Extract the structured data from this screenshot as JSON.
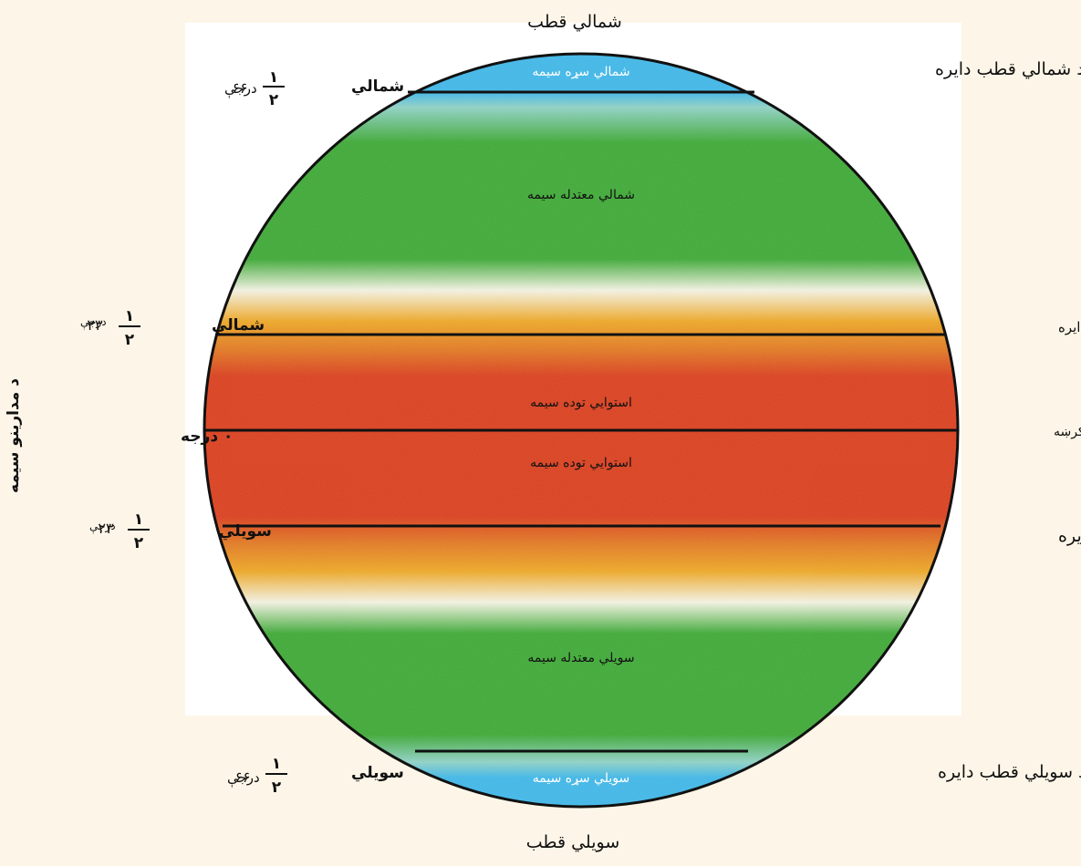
{
  "poles": {
    "north": "شمالي قطب",
    "south": "سویلي قطب"
  },
  "zones": {
    "north_polar": "شمالي سړه سیمه",
    "north_temperate": "شمالي معتدله سیمه",
    "tropical_upper": "استوايي توده سیمه",
    "tropical_lower": "استوايي توده سیمه",
    "south_temperate": "سویلي معتدله سیمه",
    "south_polar": "سویلي سړه سیمه"
  },
  "right_lines": {
    "arctic_circle": "د شمالي قطب دايره",
    "tropic_cancer": "دسرطان‌دايره",
    "equator": "د استواکرښه",
    "tropic_capricorn": "دجدي‌دايره",
    "antarctic_circle": "د سویلي قطب دايره"
  },
  "left_latitudes": {
    "north_66": {
      "dir": "شمالي",
      "whole": "۶۶",
      "num": "۱",
      "den": "۲",
      "unit": "درجې"
    },
    "north_23": {
      "dir": "شمالي",
      "whole": "۲۳",
      "num": "۱",
      "den": "۲",
      "unit": "درجې"
    },
    "equator": "۰ درجه",
    "south_23": {
      "dir": "سویلي",
      "whole": "۲۳",
      "num": "۱",
      "den": "۲",
      "unit": "درجې"
    },
    "south_66": {
      "dir": "سویلي",
      "whole": "۶۶",
      "num": "۱",
      "den": "۲",
      "unit": "درجې"
    }
  },
  "side_title": "د مدارینو سیمه",
  "colors": {
    "background": "#fdf6e8",
    "polar": "#41b6e6",
    "temperate": "#3fa837",
    "subtropical": "#eba626",
    "tropical": "#d8401f"
  }
}
